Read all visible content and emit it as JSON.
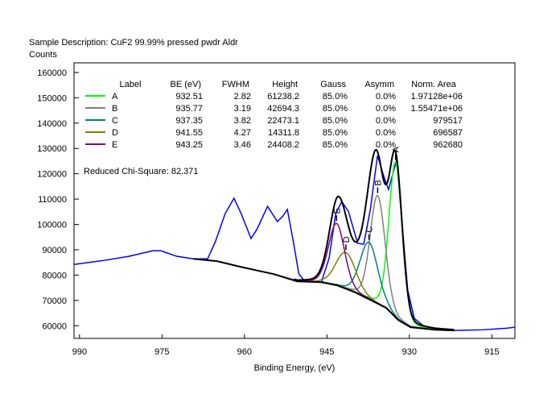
{
  "header": {
    "description": "Sample Description:  CuF2 99.99% pressed pwdr Aldr",
    "ylabel": "Counts"
  },
  "chart_data": {
    "type": "line",
    "title": "",
    "xlabel": "Binding Energy, (eV)",
    "ylabel": "Counts",
    "xlim": [
      991,
      910.8
    ],
    "ylim": [
      55000,
      163800
    ],
    "x_reversed": true,
    "grid": false,
    "xticks": [
      990,
      975,
      960,
      945,
      930,
      915
    ],
    "yticks": [
      60000,
      70000,
      80000,
      90000,
      100000,
      110000,
      120000,
      130000,
      140000,
      150000,
      160000
    ],
    "spectrum": {
      "color": "#0000ff",
      "x": [
        991,
        985.5,
        981,
        976.7,
        975.2,
        972.3,
        969.3,
        966.7,
        965.3,
        963.5,
        961.9,
        960.6,
        958.8,
        957.7,
        955.8,
        954,
        953,
        952.2,
        951.1,
        950.1,
        949,
        946,
        944.6,
        943.4,
        942.3,
        941.1,
        939.4,
        938.3,
        937.1,
        935.8,
        934.6,
        933.8,
        932.3,
        931.3,
        930.3,
        929.1,
        926.9,
        922.5,
        916.6,
        912.3,
        910.8
      ],
      "y": [
        84200,
        85800,
        87400,
        89600,
        89600,
        87400,
        86400,
        86400,
        93100,
        104300,
        110300,
        104300,
        94400,
        98200,
        107100,
        101100,
        103300,
        105900,
        93100,
        80400,
        77500,
        77200,
        86700,
        104300,
        109000,
        105200,
        92500,
        92200,
        105900,
        127200,
        118600,
        113800,
        125600,
        99500,
        74000,
        62900,
        59000,
        58100,
        58400,
        59000,
        59400
      ]
    },
    "background": {
      "color": "#000000",
      "x": [
        969.3,
        965,
        960.6,
        954.7,
        950.4,
        946,
        943.1,
        940.1,
        937.1,
        934.2,
        932,
        929.8,
        925.4,
        921.8
      ],
      "y": [
        86400,
        85500,
        83200,
        80400,
        77500,
        77200,
        75900,
        73400,
        70200,
        67000,
        62200,
        59400,
        58400,
        58100
      ]
    },
    "fit_envelope_color": "#000000",
    "table": {
      "headers": [
        "Label",
        "BE (eV)",
        "FWHM",
        "Height",
        "Gauss",
        "Asymm",
        "Norm. Area"
      ],
      "rows": [
        {
          "label": "A",
          "be": "932.51",
          "fwhm": "2.82",
          "height": "61238.2",
          "gauss": "85.0%",
          "asymm": "0.0%",
          "area": "1.97128e+06",
          "color": "#00ff00"
        },
        {
          "label": "B",
          "be": "935.77",
          "fwhm": "3.19",
          "height": "42694.3",
          "gauss": "85.0%",
          "asymm": "0.0%",
          "area": "1.55471e+06",
          "color": "#808080"
        },
        {
          "label": "C",
          "be": "937.35",
          "fwhm": "3.82",
          "height": "22473.1",
          "gauss": "85.0%",
          "asymm": "0.0%",
          "area": "979517",
          "color": "#008080"
        },
        {
          "label": "D",
          "be": "941.55",
          "fwhm": "4.27",
          "height": "14311.8",
          "gauss": "85.0%",
          "asymm": "0.0%",
          "area": "696587",
          "color": "#808000"
        },
        {
          "label": "E",
          "be": "943.25",
          "fwhm": "3.46",
          "height": "24408.2",
          "gauss": "85.0%",
          "asymm": "0.0%",
          "area": "962680",
          "color": "#800080"
        }
      ]
    },
    "chi_square": "Reduced Chi-Square: 82.371"
  }
}
